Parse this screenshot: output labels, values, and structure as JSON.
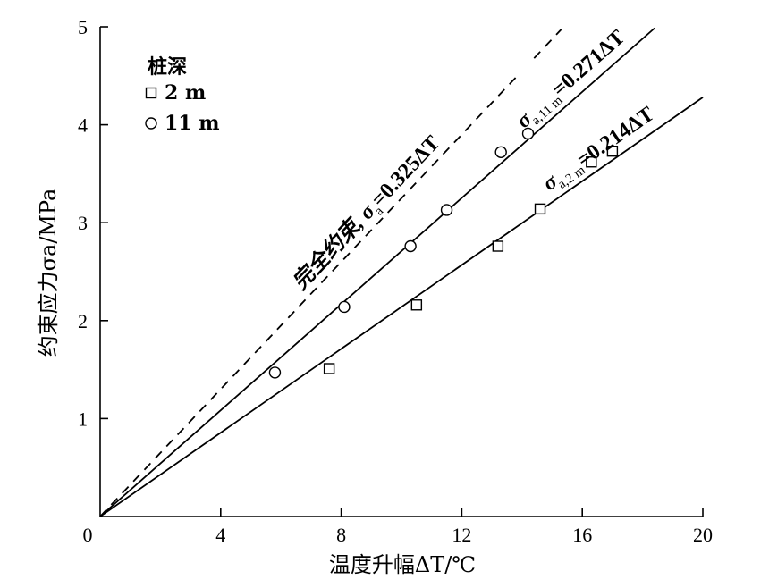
{
  "chart_data": {
    "type": "scatter",
    "xlabel": "温度升幅ΔT/℃",
    "ylabel": "约束应力σa/MPa",
    "xlim": [
      0,
      20
    ],
    "ylim": [
      0,
      5
    ],
    "x_ticks": [
      0,
      4,
      8,
      12,
      16,
      20
    ],
    "y_ticks": [
      0,
      1,
      2,
      3,
      4,
      5
    ],
    "x_tick_labels": [
      "0",
      "4",
      "8",
      "12",
      "16",
      "20"
    ],
    "y_tick_labels": [
      "1",
      "2",
      "3",
      "4",
      "5"
    ],
    "legend": {
      "title": "桩深",
      "position": "top-left",
      "entries": [
        {
          "marker": "square",
          "label": "2 m"
        },
        {
          "marker": "circle",
          "label": "11 m"
        }
      ]
    },
    "series": [
      {
        "name": "2 m",
        "marker": "square",
        "x": [
          7.6,
          10.5,
          13.2,
          14.6,
          16.3,
          17.0
        ],
        "y": [
          1.51,
          2.16,
          2.76,
          3.14,
          3.62,
          3.73
        ]
      },
      {
        "name": "11 m",
        "marker": "circle",
        "x": [
          5.8,
          8.1,
          10.3,
          11.5,
          13.3,
          14.2
        ],
        "y": [
          1.47,
          2.14,
          2.76,
          3.13,
          3.72,
          3.91
        ]
      }
    ],
    "fit_lines": [
      {
        "style": "dashed",
        "slope": 0.325,
        "x_range": [
          0,
          15.3
        ],
        "gap": [
          13.9,
          14.4
        ],
        "label_prefix": "完全约束, σ",
        "label_sub": "a",
        "label_suffix": "=0.325ΔT"
      },
      {
        "style": "solid",
        "slope": 0.271,
        "x_range": [
          0,
          18.4
        ],
        "label_prefix": "σ",
        "label_sub": "a,11 m",
        "label_suffix": "=0.271ΔT"
      },
      {
        "style": "solid",
        "slope": 0.214,
        "x_range": [
          0,
          20
        ],
        "label_prefix": "σ",
        "label_sub": "a,2 m",
        "label_suffix": "=0.214ΔT"
      }
    ]
  }
}
